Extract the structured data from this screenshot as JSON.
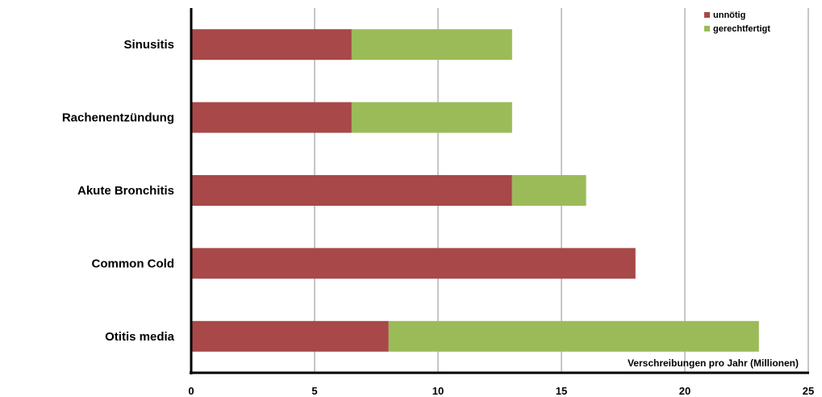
{
  "chart_data": {
    "type": "bar",
    "orientation": "horizontal",
    "stacked": true,
    "categories": [
      "Sinusitis",
      "Rachenentzündung",
      "Akute Bronchitis",
      "Common Cold",
      "Otitis media"
    ],
    "series": [
      {
        "name": "unnötig",
        "color": "#a84848",
        "values": [
          6.5,
          6.5,
          13,
          18,
          8
        ]
      },
      {
        "name": "gerechtfertigt",
        "color": "#9bbb59",
        "values": [
          6.5,
          6.5,
          3,
          0,
          15
        ]
      }
    ],
    "title": "",
    "xlabel": "Verschreibungen pro Jahr (Millionen)",
    "ylabel": "",
    "xlim": [
      0,
      25
    ],
    "xticks": [
      0,
      5,
      10,
      15,
      20,
      25
    ],
    "grid": true,
    "legend": "top-right"
  }
}
